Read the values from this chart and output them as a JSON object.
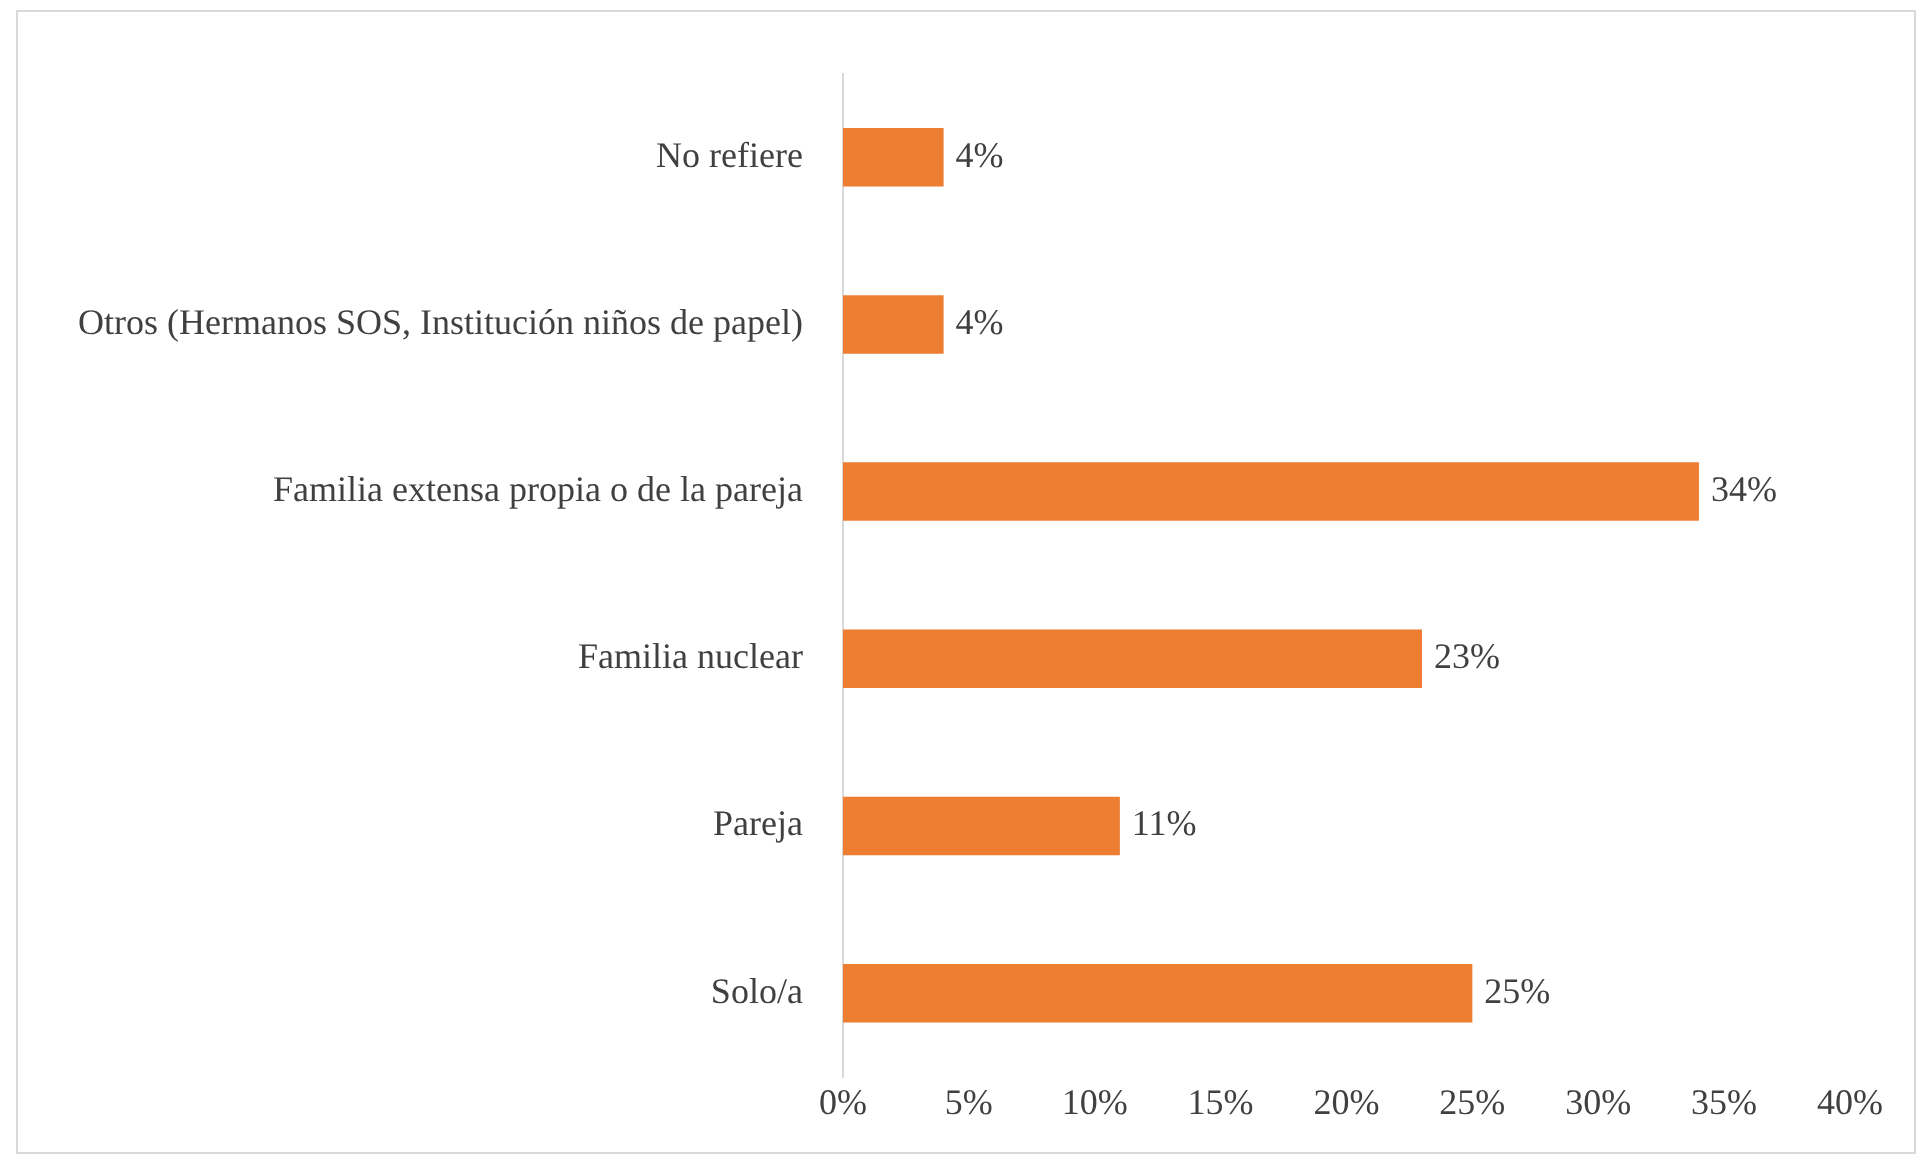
{
  "chart_data": {
    "type": "bar",
    "orientation": "horizontal",
    "categories": [
      "No refiere",
      "Otros (Hermanos SOS, Institución niños de papel)",
      "Familia extensa propia o de la pareja",
      "Familia nuclear",
      "Pareja",
      "Solo/a"
    ],
    "values": [
      4,
      4,
      34,
      23,
      11,
      25
    ],
    "value_labels": [
      "4%",
      "4%",
      "34%",
      "23%",
      "11%",
      "25%"
    ],
    "color": "#ed7d31",
    "xlim": [
      0,
      40
    ],
    "xticks": [
      {
        "value": 0,
        "label": "0%"
      },
      {
        "value": 5,
        "label": "5%"
      },
      {
        "value": 10,
        "label": "10%"
      },
      {
        "value": 15,
        "label": "15%"
      },
      {
        "value": 20,
        "label": "20%"
      },
      {
        "value": 25,
        "label": "25%"
      },
      {
        "value": 30,
        "label": "30%"
      },
      {
        "value": 35,
        "label": "35%"
      },
      {
        "value": 40,
        "label": "40%"
      }
    ],
    "grid": false,
    "legend": false
  }
}
